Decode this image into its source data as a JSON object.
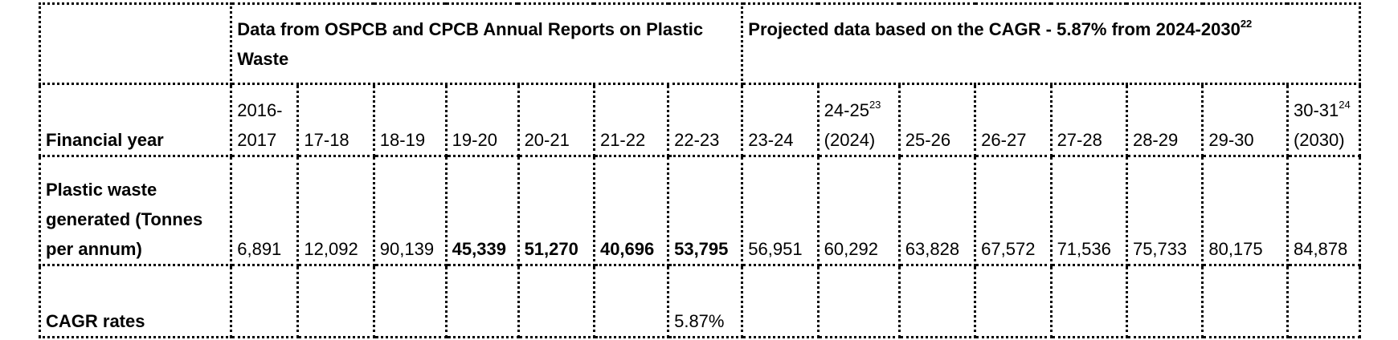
{
  "header": {
    "blank": "",
    "historical_label": "Data from OSPCB and CPCB Annual Reports on Plastic Waste",
    "projected_label": "Projected data based on the CAGR - 5.87% from 2024-2030",
    "projected_ref": "22"
  },
  "rows": {
    "year_label": "Financial year",
    "waste_label": "Plastic waste generated (Tonnes per annum)",
    "cagr_label": "CAGR rates"
  },
  "years": [
    {
      "line1": "2016-",
      "line2": "2017",
      "ref": ""
    },
    {
      "line1": "",
      "line2": "17-18",
      "ref": ""
    },
    {
      "line1": "",
      "line2": "18-19",
      "ref": ""
    },
    {
      "line1": "",
      "line2": "19-20",
      "ref": ""
    },
    {
      "line1": "",
      "line2": "20-21",
      "ref": ""
    },
    {
      "line1": "",
      "line2": "21-22",
      "ref": ""
    },
    {
      "line1": "",
      "line2": "22-23",
      "ref": ""
    },
    {
      "line1": "",
      "line2": "23-24",
      "ref": ""
    },
    {
      "line1": "24-25",
      "line2": "(2024)",
      "ref": "23"
    },
    {
      "line1": "",
      "line2": "25-26",
      "ref": ""
    },
    {
      "line1": "",
      "line2": "26-27",
      "ref": ""
    },
    {
      "line1": "",
      "line2": "27-28",
      "ref": ""
    },
    {
      "line1": "",
      "line2": "28-29",
      "ref": ""
    },
    {
      "line1": "",
      "line2": "29-30",
      "ref": ""
    },
    {
      "line1": "30-31",
      "line2": "(2030)",
      "ref": "24"
    }
  ],
  "waste": [
    "6,891",
    "12,092",
    "90,139",
    "45,339",
    "51,270",
    "40,696",
    "53,795",
    "56,951",
    "60,292",
    "63,828",
    "67,572",
    "71,536",
    "75,733",
    "80,175",
    "84,878"
  ],
  "waste_bold": [
    false,
    false,
    false,
    true,
    true,
    true,
    true,
    false,
    false,
    false,
    false,
    false,
    false,
    false,
    false
  ],
  "cagr": [
    "",
    "",
    "",
    "",
    "",
    "",
    "5.87%",
    "",
    "",
    "",
    "",
    "",
    "",
    "",
    ""
  ]
}
